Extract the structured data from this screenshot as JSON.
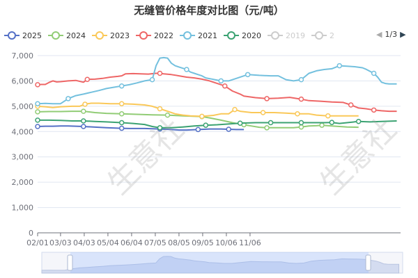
{
  "chart_data": {
    "type": "line",
    "title": "无缝管价格年度对比图（元/吨）",
    "y_ticks": [
      "0",
      "1,000",
      "2,000",
      "3,000",
      "4,000",
      "5,000",
      "6,000",
      "7,000"
    ],
    "ylim": [
      0,
      7000
    ],
    "x_ticks": [
      "02/01",
      "03/03",
      "04/03",
      "05/04",
      "06/04",
      "07/05",
      "08/05",
      "09/05",
      "10/06",
      "11/06"
    ],
    "legend_page": "1/3",
    "watermark": "生意社",
    "grid": true,
    "legend_position": "top",
    "series": [
      {
        "name": "2025",
        "color": "#5470c6",
        "active": true,
        "points": [
          [
            0,
            4200
          ],
          [
            10,
            4210
          ],
          [
            20,
            4210
          ],
          [
            30,
            4220
          ],
          [
            40,
            4220
          ],
          [
            60,
            4200
          ],
          [
            90,
            4150
          ],
          [
            110,
            4130
          ],
          [
            120,
            4120
          ],
          [
            140,
            4120
          ],
          [
            160,
            4100
          ],
          [
            175,
            4080
          ],
          [
            185,
            4060
          ],
          [
            195,
            4060
          ],
          [
            210,
            4080
          ],
          [
            225,
            4100
          ],
          [
            240,
            4100
          ],
          [
            250,
            4090
          ],
          [
            260,
            4080
          ],
          [
            270,
            4080
          ]
        ],
        "markers": [
          [
            0,
            4200
          ],
          [
            60,
            4200
          ],
          [
            110,
            4130
          ],
          [
            160,
            4100
          ],
          [
            210,
            4080
          ],
          [
            250,
            4090
          ]
        ]
      },
      {
        "name": "2024",
        "color": "#91cc75",
        "active": true,
        "points": [
          [
            0,
            4780
          ],
          [
            15,
            4790
          ],
          [
            30,
            4790
          ],
          [
            45,
            4800
          ],
          [
            60,
            4800
          ],
          [
            75,
            4750
          ],
          [
            90,
            4720
          ],
          [
            110,
            4700
          ],
          [
            130,
            4680
          ],
          [
            150,
            4660
          ],
          [
            170,
            4650
          ],
          [
            190,
            4620
          ],
          [
            200,
            4610
          ],
          [
            215,
            4590
          ],
          [
            225,
            4540
          ],
          [
            240,
            4450
          ],
          [
            255,
            4350
          ],
          [
            270,
            4270
          ],
          [
            280,
            4220
          ],
          [
            290,
            4170
          ],
          [
            300,
            4150
          ],
          [
            315,
            4150
          ],
          [
            335,
            4150
          ],
          [
            345,
            4180
          ],
          [
            355,
            4220
          ],
          [
            365,
            4230
          ],
          [
            372,
            4250
          ],
          [
            380,
            4230
          ],
          [
            395,
            4200
          ],
          [
            405,
            4180
          ],
          [
            420,
            4170
          ]
        ],
        "markers": [
          [
            0,
            4780
          ],
          [
            60,
            4800
          ],
          [
            110,
            4700
          ],
          [
            170,
            4650
          ],
          [
            215,
            4590
          ],
          [
            270,
            4270
          ],
          [
            300,
            4150
          ],
          [
            345,
            4180
          ],
          [
            372,
            4250
          ]
        ]
      },
      {
        "name": "2023",
        "color": "#fac858",
        "active": true,
        "points": [
          [
            0,
            5000
          ],
          [
            10,
            4980
          ],
          [
            20,
            4950
          ],
          [
            30,
            4980
          ],
          [
            45,
            5000
          ],
          [
            55,
            5000
          ],
          [
            62,
            5080
          ],
          [
            70,
            5120
          ],
          [
            80,
            5120
          ],
          [
            95,
            5100
          ],
          [
            110,
            5100
          ],
          [
            125,
            5080
          ],
          [
            140,
            5050
          ],
          [
            150,
            5000
          ],
          [
            160,
            4900
          ],
          [
            170,
            4800
          ],
          [
            180,
            4700
          ],
          [
            190,
            4650
          ],
          [
            200,
            4620
          ],
          [
            215,
            4600
          ],
          [
            230,
            4640
          ],
          [
            240,
            4700
          ],
          [
            250,
            4700
          ],
          [
            258,
            4870
          ],
          [
            265,
            4800
          ],
          [
            280,
            4750
          ],
          [
            295,
            4750
          ],
          [
            310,
            4750
          ],
          [
            325,
            4730
          ],
          [
            340,
            4700
          ],
          [
            355,
            4700
          ],
          [
            365,
            4650
          ],
          [
            380,
            4620
          ],
          [
            395,
            4620
          ],
          [
            410,
            4620
          ],
          [
            420,
            4620
          ]
        ],
        "markers": [
          [
            0,
            5000
          ],
          [
            62,
            5080
          ],
          [
            110,
            5100
          ],
          [
            160,
            4900
          ],
          [
            215,
            4600
          ],
          [
            258,
            4870
          ],
          [
            295,
            4750
          ],
          [
            340,
            4700
          ],
          [
            380,
            4620
          ]
        ]
      },
      {
        "name": "2022",
        "color": "#ee6666",
        "active": true,
        "points": [
          [
            0,
            5850
          ],
          [
            5,
            5860
          ],
          [
            10,
            5860
          ],
          [
            15,
            5940
          ],
          [
            20,
            6000
          ],
          [
            25,
            5960
          ],
          [
            30,
            5970
          ],
          [
            40,
            6000
          ],
          [
            50,
            6020
          ],
          [
            60,
            5950
          ],
          [
            65,
            6060
          ],
          [
            75,
            6070
          ],
          [
            85,
            6100
          ],
          [
            95,
            6150
          ],
          [
            105,
            6180
          ],
          [
            110,
            6200
          ],
          [
            115,
            6280
          ],
          [
            125,
            6290
          ],
          [
            135,
            6280
          ],
          [
            145,
            6270
          ],
          [
            155,
            6300
          ],
          [
            160,
            6300
          ],
          [
            165,
            6280
          ],
          [
            175,
            6250
          ],
          [
            185,
            6200
          ],
          [
            195,
            6150
          ],
          [
            205,
            6120
          ],
          [
            215,
            6070
          ],
          [
            225,
            6000
          ],
          [
            235,
            5900
          ],
          [
            245,
            5800
          ],
          [
            255,
            5600
          ],
          [
            265,
            5480
          ],
          [
            270,
            5400
          ],
          [
            275,
            5380
          ],
          [
            285,
            5340
          ],
          [
            300,
            5300
          ],
          [
            315,
            5320
          ],
          [
            330,
            5350
          ],
          [
            345,
            5280
          ],
          [
            355,
            5220
          ],
          [
            370,
            5200
          ],
          [
            385,
            5170
          ],
          [
            400,
            5150
          ],
          [
            410,
            5050
          ],
          [
            420,
            4930
          ],
          [
            430,
            4900
          ],
          [
            440,
            4850
          ],
          [
            450,
            4820
          ],
          [
            460,
            4800
          ],
          [
            470,
            4800
          ]
        ],
        "markers": [
          [
            0,
            5850
          ],
          [
            65,
            6060
          ],
          [
            160,
            6300
          ],
          [
            245,
            5800
          ],
          [
            300,
            5300
          ],
          [
            345,
            5280
          ],
          [
            410,
            5050
          ],
          [
            440,
            4850
          ]
        ]
      },
      {
        "name": "2021",
        "color": "#73c0de",
        "active": true,
        "points": [
          [
            0,
            5100
          ],
          [
            10,
            5110
          ],
          [
            20,
            5100
          ],
          [
            30,
            5100
          ],
          [
            40,
            5300
          ],
          [
            50,
            5420
          ],
          [
            60,
            5480
          ],
          [
            70,
            5550
          ],
          [
            80,
            5620
          ],
          [
            90,
            5700
          ],
          [
            100,
            5750
          ],
          [
            110,
            5800
          ],
          [
            120,
            5850
          ],
          [
            130,
            5920
          ],
          [
            140,
            6000
          ],
          [
            150,
            6050
          ],
          [
            155,
            6600
          ],
          [
            160,
            6900
          ],
          [
            165,
            6920
          ],
          [
            170,
            6900
          ],
          [
            175,
            6700
          ],
          [
            180,
            6600
          ],
          [
            185,
            6550
          ],
          [
            190,
            6500
          ],
          [
            195,
            6450
          ],
          [
            200,
            6350
          ],
          [
            205,
            6300
          ],
          [
            210,
            6250
          ],
          [
            215,
            6200
          ],
          [
            220,
            6120
          ],
          [
            230,
            6060
          ],
          [
            240,
            6000
          ],
          [
            250,
            6000
          ],
          [
            260,
            6100
          ],
          [
            275,
            6250
          ],
          [
            290,
            6220
          ],
          [
            305,
            6200
          ],
          [
            315,
            6200
          ],
          [
            325,
            6050
          ],
          [
            335,
            6000
          ],
          [
            345,
            6050
          ],
          [
            355,
            6300
          ],
          [
            365,
            6400
          ],
          [
            375,
            6450
          ],
          [
            385,
            6480
          ],
          [
            395,
            6600
          ],
          [
            405,
            6580
          ],
          [
            415,
            6560
          ],
          [
            425,
            6520
          ],
          [
            430,
            6460
          ],
          [
            440,
            6300
          ],
          [
            445,
            6150
          ],
          [
            450,
            5950
          ],
          [
            455,
            5900
          ],
          [
            460,
            5880
          ],
          [
            470,
            5880
          ]
        ],
        "markers": [
          [
            0,
            5100
          ],
          [
            40,
            5300
          ],
          [
            110,
            5800
          ],
          [
            150,
            6050
          ],
          [
            195,
            6450
          ],
          [
            240,
            6000
          ],
          [
            275,
            6250
          ],
          [
            345,
            6050
          ],
          [
            395,
            6600
          ],
          [
            440,
            6300
          ]
        ]
      },
      {
        "name": "2020",
        "color": "#3ba272",
        "active": true,
        "points": [
          [
            0,
            4450
          ],
          [
            15,
            4450
          ],
          [
            30,
            4440
          ],
          [
            45,
            4420
          ],
          [
            60,
            4420
          ],
          [
            75,
            4400
          ],
          [
            90,
            4380
          ],
          [
            110,
            4350
          ],
          [
            125,
            4320
          ],
          [
            140,
            4280
          ],
          [
            150,
            4200
          ],
          [
            160,
            4150
          ],
          [
            175,
            4150
          ],
          [
            190,
            4180
          ],
          [
            205,
            4220
          ],
          [
            220,
            4250
          ],
          [
            235,
            4270
          ],
          [
            250,
            4300
          ],
          [
            265,
            4330
          ],
          [
            285,
            4350
          ],
          [
            305,
            4350
          ],
          [
            325,
            4350
          ],
          [
            345,
            4350
          ],
          [
            360,
            4350
          ],
          [
            375,
            4350
          ],
          [
            385,
            4360
          ],
          [
            395,
            4320
          ],
          [
            405,
            4350
          ],
          [
            420,
            4400
          ],
          [
            435,
            4380
          ],
          [
            450,
            4400
          ],
          [
            470,
            4420
          ]
        ],
        "markers": [
          [
            0,
            4450
          ],
          [
            60,
            4420
          ],
          [
            110,
            4350
          ],
          [
            160,
            4150
          ],
          [
            220,
            4250
          ],
          [
            265,
            4330
          ],
          [
            305,
            4350
          ],
          [
            345,
            4350
          ],
          [
            385,
            4360
          ],
          [
            420,
            4400
          ]
        ]
      },
      {
        "name": "2019",
        "color": "#cccccc",
        "active": false,
        "points": [],
        "markers": []
      },
      {
        "name": "2",
        "color": "#cccccc",
        "active": false,
        "points": [],
        "markers": []
      }
    ]
  }
}
